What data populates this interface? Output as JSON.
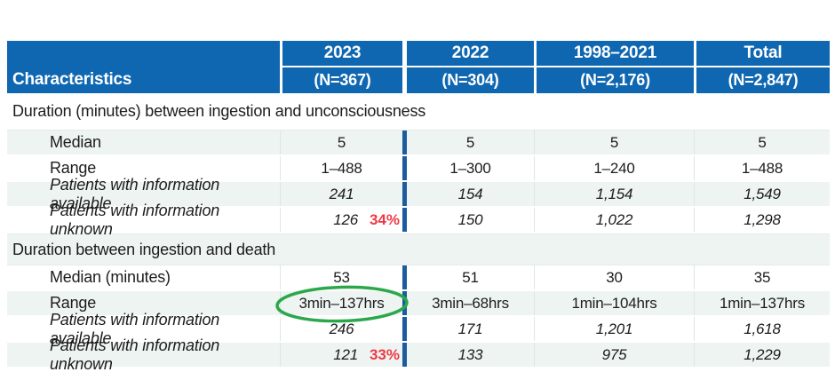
{
  "figure": {
    "type": "table",
    "characteristics_label": "Characteristics",
    "column_headers": [
      {
        "id": "2023",
        "period": "2023",
        "n": "(N=367)"
      },
      {
        "id": "2022",
        "period": "2022",
        "n": "(N=304)"
      },
      {
        "id": "1998-2021",
        "period": "1998–2021",
        "n": "(N=2,176)"
      },
      {
        "id": "total",
        "period": "Total",
        "n": "(N=2,847)"
      }
    ],
    "sections": [
      {
        "title": "Duration (minutes) between ingestion and unconsciousness",
        "rows": [
          {
            "label": "Median",
            "style": "plain",
            "values": [
              "5",
              "5",
              "5",
              "5"
            ]
          },
          {
            "label": "Range",
            "style": "plain",
            "values": [
              "1–488",
              "1–300",
              "1–240",
              "1–488"
            ]
          },
          {
            "label": "Patients with information available",
            "style": "italic",
            "values": [
              "241",
              "154",
              "1,154",
              "1,549"
            ]
          },
          {
            "label": "Patients with information unknown",
            "style": "italic",
            "values": [
              "126",
              "150",
              "1,022",
              "1,298"
            ],
            "percent_2023": "34%"
          }
        ]
      },
      {
        "title": "Duration between ingestion and death",
        "rows": [
          {
            "label": "Median (minutes)",
            "style": "plain",
            "values": [
              "53",
              "51",
              "30",
              "35"
            ]
          },
          {
            "label": "Range",
            "style": "plain",
            "values": [
              "3min–137hrs",
              "3min–68hrs",
              "1min–104hrs",
              "1min–137hrs"
            ],
            "circled_col": 0
          },
          {
            "label": "Patients with information available",
            "style": "italic",
            "values": [
              "246",
              "171",
              "1,201",
              "1,618"
            ]
          },
          {
            "label": "Patients with information unknown",
            "style": "italic",
            "values": [
              "121",
              "133",
              "975",
              "1,229"
            ],
            "percent_2023": "33%"
          }
        ]
      }
    ],
    "colors": {
      "header_blue": "#0f67b1",
      "divider_blue": "#1b5c9e",
      "zebra_light": "#eef4f1",
      "text": "#1c1c1c",
      "percent_red": "#ee3944",
      "circle_green": "#2aa84b"
    }
  }
}
